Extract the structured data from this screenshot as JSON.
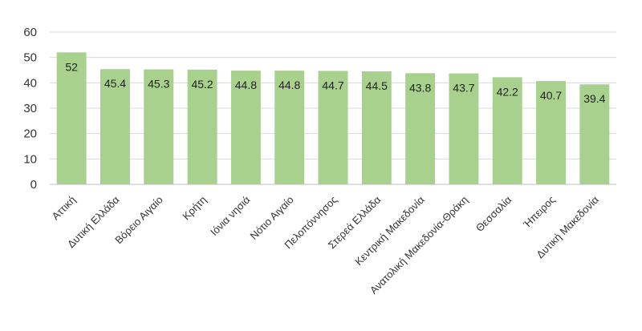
{
  "chart_data": {
    "type": "bar",
    "categories": [
      "Αττική",
      "Δυτική Ελλάδα",
      "Βόρειο Αιγαίο",
      "Κρήτη",
      "Ιόνια νησιά",
      "Νότιο Αιγαίο",
      "Πελοπόννησος",
      "Στερεά Ελλάδα",
      "Κεντρική Μακεδονία",
      "Ανατολική Μακεδονία-Θράκη",
      "Θεσσαλία",
      "Ήπειρος",
      "Δυτική Μακεδονία"
    ],
    "values": [
      52,
      45.4,
      45.3,
      45.2,
      44.8,
      44.8,
      44.7,
      44.5,
      43.8,
      43.7,
      42.2,
      40.7,
      39.4
    ],
    "data_labels": [
      "52",
      "45.4",
      "45.3",
      "45.2",
      "44.8",
      "44.8",
      "44.7",
      "44.5",
      "43.8",
      "43.7",
      "42.2",
      "40.7",
      "39.4"
    ],
    "yticks": [
      "0",
      "10",
      "20",
      "30",
      "40",
      "50",
      "60"
    ],
    "ylim": [
      0,
      60
    ],
    "grid": true,
    "bar_color": "#a9d18e",
    "title": "",
    "xlabel": "",
    "ylabel": ""
  }
}
